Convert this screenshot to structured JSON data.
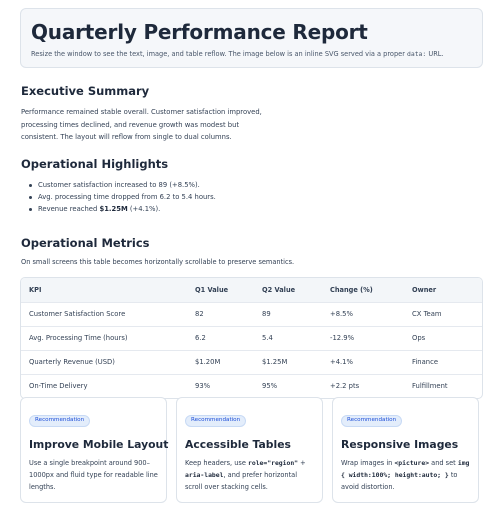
{
  "header": {
    "title": "Quarterly Performance Report",
    "subtitle_prefix": "Resize the window to see the text, image, and table reflow. The image below is an inline SVG served via a proper ",
    "subtitle_code": "data:",
    "subtitle_suffix": " URL."
  },
  "summary": {
    "heading": "Executive Summary",
    "text": "Performance remained stable overall. Customer satisfaction improved, processing times declined, and revenue growth was modest but consistent. The layout will reflow from single to dual columns."
  },
  "highlights": {
    "heading": "Operational Highlights",
    "items": [
      {
        "text": "Customer satisfaction increased to 89 (+8.5%)."
      },
      {
        "text": "Avg. processing time dropped from 6.2 to 5.4 hours."
      },
      {
        "prefix": "Revenue reached ",
        "bold": "$1.25M",
        "suffix": " (+4.1%)."
      }
    ]
  },
  "metrics": {
    "heading": "Operational Metrics",
    "description": "On small screens this table becomes horizontally scrollable to preserve semantics.",
    "columns": [
      "KPI",
      "Q1 Value",
      "Q2 Value",
      "Change (%)",
      "Owner"
    ],
    "rows": [
      [
        "Customer Satisfaction Score",
        "82",
        "89",
        "+8.5%",
        "CX Team"
      ],
      [
        "Avg. Processing Time (hours)",
        "6.2",
        "5.4",
        "-12.9%",
        "Ops"
      ],
      [
        "Quarterly Revenue (USD)",
        "$1.20M",
        "$1.25M",
        "+4.1%",
        "Finance"
      ],
      [
        "On-Time Delivery",
        "93%",
        "95%",
        "+2.2 pts",
        "Fulfillment"
      ]
    ]
  },
  "recommendations": [
    {
      "badge": "Recommendation",
      "title": "Improve Mobile Layout",
      "text": "Use a single breakpoint around 900–1000px and fluid type for readable line lengths."
    },
    {
      "badge": "Recommendation",
      "title": "Accessible Tables",
      "t1": "Keep headers, use ",
      "c1": "role=\"region\"",
      "t2": " + ",
      "c2": "aria-label",
      "t3": ", and prefer horizontal scroll over stacking cells."
    },
    {
      "badge": "Recommendation",
      "title": "Responsive Images",
      "t1": "Wrap images in ",
      "c1": "<picture>",
      "t2": " and set ",
      "c2": "img { width:100%; height:auto; }",
      "t3": " to avoid distortion."
    }
  ]
}
